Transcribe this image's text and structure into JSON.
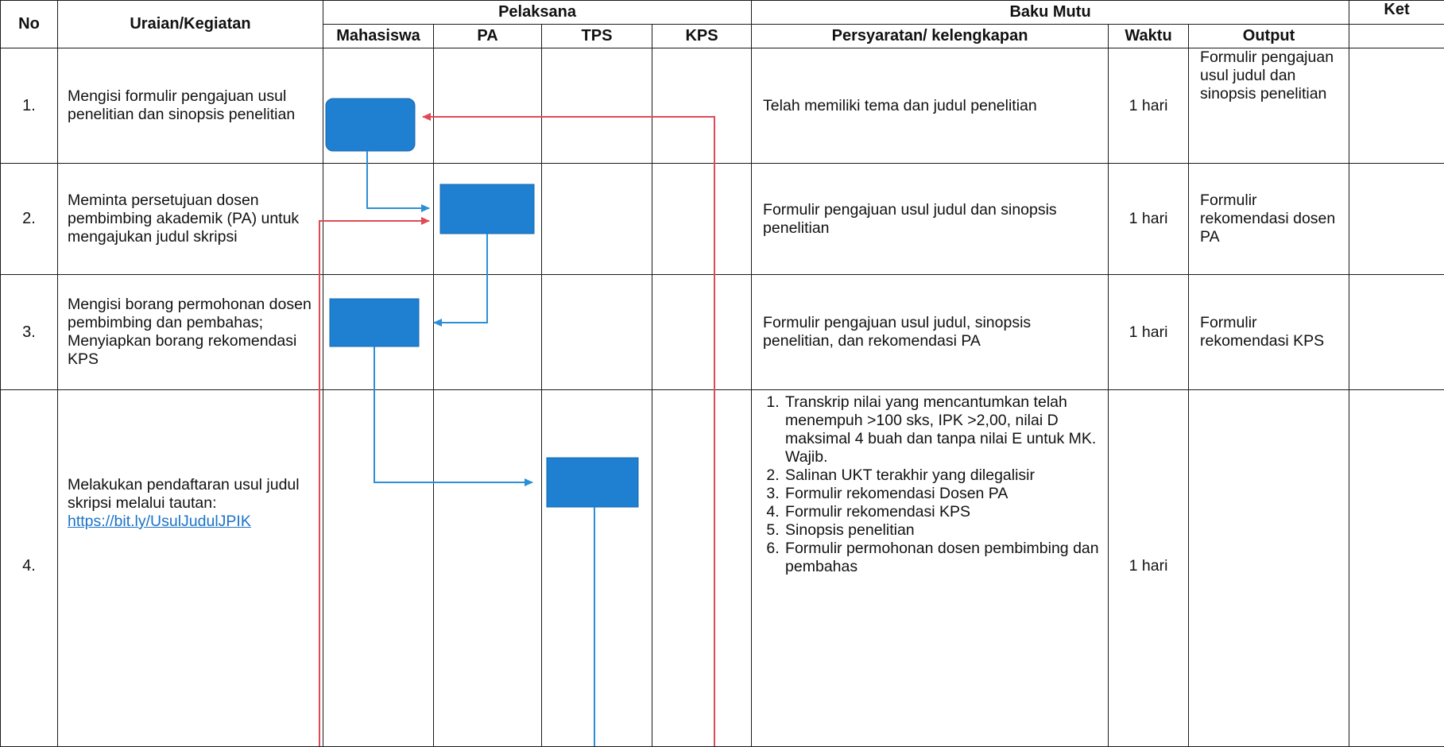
{
  "headers": {
    "no": "No",
    "uraian": "Uraian/Kegiatan",
    "pelaksana": "Pelaksana",
    "baku_mutu": "Baku Mutu",
    "ket": "Ket",
    "mahasiswa": "Mahasiswa",
    "pa": "PA",
    "tps": "TPS",
    "kps": "KPS",
    "persyaratan": "Persyaratan/ kelengkapan",
    "waktu": "Waktu",
    "output": "Output"
  },
  "rows": [
    {
      "no": "1.",
      "activity": "Mengisi formulir pengajuan usul penelitian dan sinopsis penelitian",
      "requirement": "Telah memiliki tema dan judul penelitian",
      "time": "1 hari",
      "output": "Formulir pengajuan usul judul dan sinopsis penelitian"
    },
    {
      "no": "2.",
      "activity": "Meminta persetujuan dosen pembimbing akademik (PA) untuk mengajukan judul skripsi",
      "requirement": "Formulir pengajuan usul judul dan sinopsis penelitian",
      "time": "1 hari",
      "output": "Formulir rekomendasi dosen PA"
    },
    {
      "no": "3.",
      "activity": "Mengisi borang permohonan dosen pembimbing dan pembahas; Menyiapkan borang rekomendasi KPS",
      "requirement": "Formulir pengajuan usul judul, sinopsis penelitian, dan rekomendasi PA",
      "time": "1 hari",
      "output": "Formulir rekomendasi KPS"
    },
    {
      "no": "4.",
      "activity": "Melakukan pendaftaran usul judul skripsi melalui tautan:",
      "link": "https://bit.ly/UsulJudulJPIK",
      "requirements": [
        "Transkrip nilai yang mencantumkan telah menempuh >100 sks, IPK >2,00, nilai D maksimal 4 buah dan tanpa nilai E untuk MK. Wajib.",
        "Salinan UKT terakhir yang dilegalisir",
        "Formulir rekomendasi Dosen PA",
        "Formulir rekomendasi KPS",
        "Sinopsis penelitian",
        "Formulir permohonan dosen pembimbing dan pembahas"
      ],
      "time": "1 hari",
      "output": ""
    }
  ],
  "colors": {
    "box_fill": "#1f7fd0",
    "flow_line": "#2c8fd6",
    "return_line": "#e04a55",
    "link": "#1a73c8"
  }
}
